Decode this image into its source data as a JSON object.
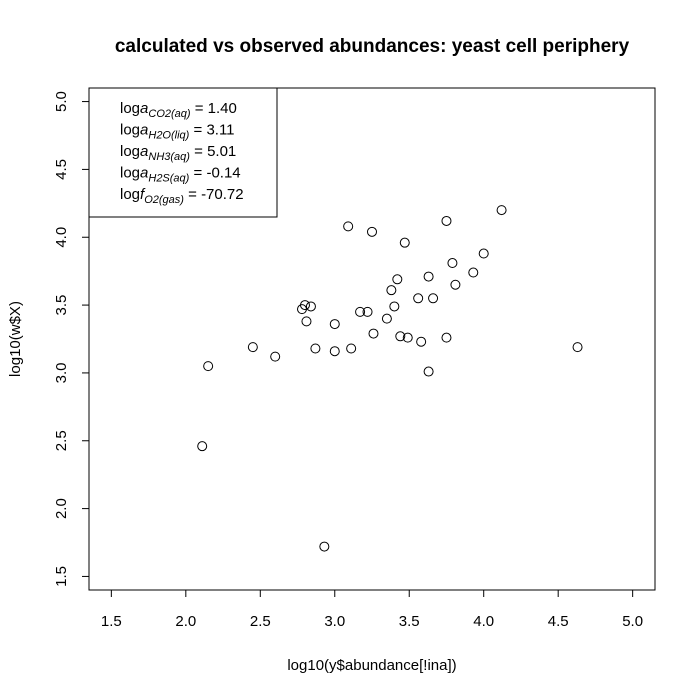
{
  "chart_data": {
    "type": "scatter",
    "title": "calculated vs observed abundances: yeast cell periphery",
    "xlabel": "log10(y$abundance[!ina])",
    "ylabel": "log10(w$X)",
    "xlim": [
      1.35,
      5.15
    ],
    "ylim": [
      1.4,
      5.1
    ],
    "x_ticks": [
      "1.5",
      "2.0",
      "2.5",
      "3.0",
      "3.5",
      "4.0",
      "4.5",
      "5.0"
    ],
    "y_ticks": [
      "1.5",
      "2.0",
      "2.5",
      "3.0",
      "3.5",
      "4.0",
      "4.5",
      "5.0"
    ],
    "grid": false,
    "legend_position": "top-left",
    "legend": [
      {
        "prefix": "log",
        "var": "a",
        "sub": "CO2(aq)",
        "value": "1.40"
      },
      {
        "prefix": "log",
        "var": "a",
        "sub": "H2O(liq)",
        "value": "3.11"
      },
      {
        "prefix": "log",
        "var": "a",
        "sub": "NH3(aq)",
        "value": "5.01"
      },
      {
        "prefix": "log",
        "var": "a",
        "sub": "H2S(aq)",
        "value": "-0.14"
      },
      {
        "prefix": "log",
        "var": "f",
        "sub": "O2(gas)",
        "value": "-70.72"
      }
    ],
    "points": [
      [
        2.11,
        2.46
      ],
      [
        2.15,
        3.05
      ],
      [
        2.45,
        3.19
      ],
      [
        2.6,
        3.12
      ],
      [
        2.78,
        3.47
      ],
      [
        2.8,
        3.5
      ],
      [
        2.81,
        3.38
      ],
      [
        2.84,
        3.49
      ],
      [
        2.87,
        3.18
      ],
      [
        2.93,
        1.72
      ],
      [
        3.0,
        3.36
      ],
      [
        3.0,
        3.16
      ],
      [
        3.09,
        4.08
      ],
      [
        3.11,
        3.18
      ],
      [
        3.17,
        3.45
      ],
      [
        3.22,
        3.45
      ],
      [
        3.25,
        4.04
      ],
      [
        3.26,
        3.29
      ],
      [
        3.35,
        3.4
      ],
      [
        3.38,
        3.61
      ],
      [
        3.4,
        3.49
      ],
      [
        3.42,
        3.69
      ],
      [
        3.44,
        3.27
      ],
      [
        3.47,
        3.96
      ],
      [
        3.49,
        3.26
      ],
      [
        3.56,
        3.55
      ],
      [
        3.58,
        3.23
      ],
      [
        3.63,
        3.71
      ],
      [
        3.63,
        3.01
      ],
      [
        3.66,
        3.55
      ],
      [
        3.75,
        4.12
      ],
      [
        3.75,
        3.26
      ],
      [
        3.79,
        3.81
      ],
      [
        3.81,
        3.65
      ],
      [
        3.93,
        3.74
      ],
      [
        4.0,
        3.88
      ],
      [
        4.12,
        4.2
      ],
      [
        4.63,
        3.19
      ]
    ]
  }
}
